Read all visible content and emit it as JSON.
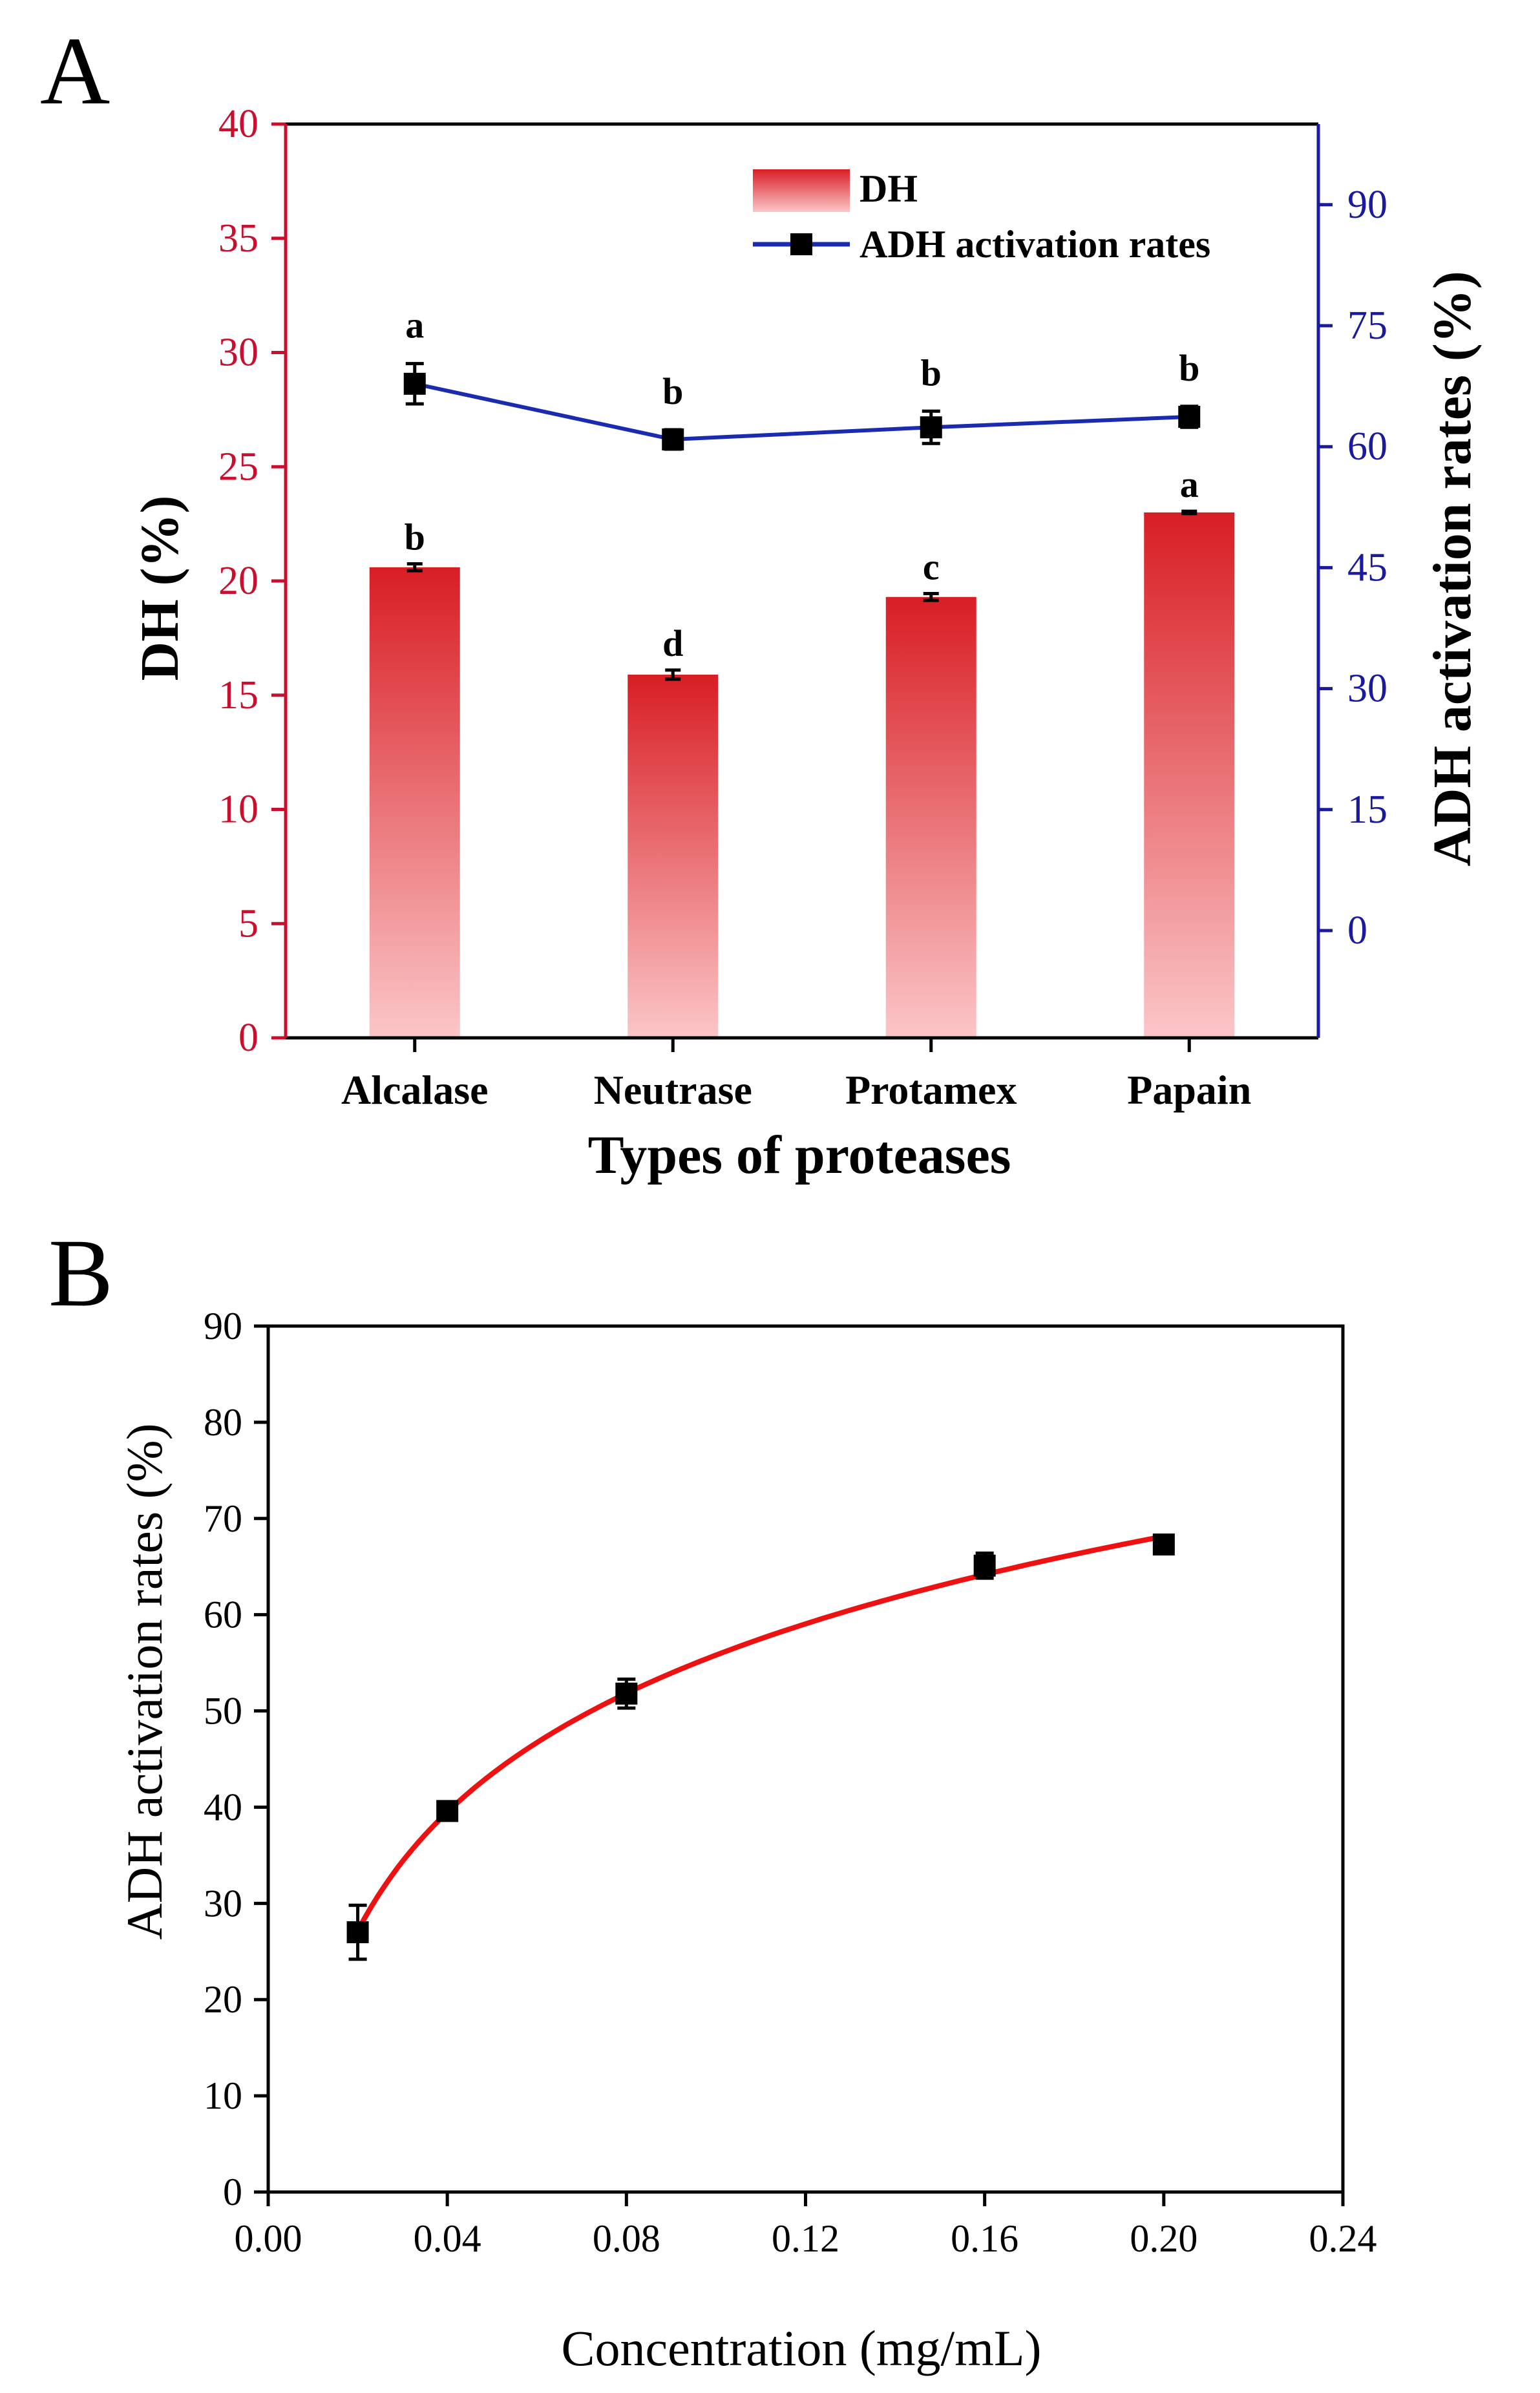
{
  "colors": {
    "dh_axis": "#c8102e",
    "adh_axis": "#1a1a9e",
    "adh_line": "#1a2bb0",
    "bar_top": "#d81e24",
    "bar_bottom": "#fbc6c8",
    "fit_curve": "#ee1111",
    "marker": "#000000",
    "text": "#000000"
  },
  "chart_data": [
    {
      "panel_label": "A",
      "type": "bar",
      "xlabel": "Types of proteases",
      "categories": [
        "Alcalase",
        "Neutrase",
        "Protamex",
        "Papain"
      ],
      "left_axis": {
        "label": "DH (%)",
        "ylim": [
          0,
          40
        ],
        "ticks": [
          0,
          5,
          10,
          15,
          20,
          25,
          30,
          35,
          40
        ],
        "tick_labels": [
          "0",
          "5",
          "10",
          "15",
          "20",
          "25",
          "30",
          "35",
          "40"
        ]
      },
      "right_axis": {
        "label": "ADH activation rates (%)",
        "ylim": [
          -13.3,
          100
        ],
        "ticks": [
          0,
          15,
          30,
          45,
          60,
          75,
          90
        ],
        "tick_labels": [
          "0",
          "15",
          "30",
          "45",
          "60",
          "75",
          "90"
        ]
      },
      "series": [
        {
          "name": "DH",
          "type": "bar",
          "axis": "left",
          "values": [
            20.6,
            15.9,
            19.3,
            23.0
          ],
          "errors": [
            0.15,
            0.2,
            0.15,
            0.05
          ],
          "letters": [
            "b",
            "d",
            "c",
            "a"
          ]
        },
        {
          "name": "ADH activation rates",
          "type": "line",
          "axis": "right",
          "values": [
            67.8,
            60.9,
            62.4,
            63.7
          ],
          "errors": [
            2.5,
            1.2,
            2.0,
            1.3
          ],
          "letters": [
            "a",
            "b",
            "b",
            "b"
          ]
        }
      ],
      "legend": {
        "position": "top-center",
        "entries": [
          "DH",
          "ADH activation rates"
        ]
      }
    },
    {
      "panel_label": "B",
      "type": "scatter",
      "xlabel": "Concentration (mg/mL)",
      "ylabel": "ADH activation rates (%)",
      "xlim": [
        0,
        0.24
      ],
      "ylim": [
        0,
        90
      ],
      "xticks": [
        0,
        0.04,
        0.08,
        0.12,
        0.16,
        0.2,
        0.24
      ],
      "xtick_labels": [
        "0.00",
        "0.04",
        "0.08",
        "0.12",
        "0.16",
        "0.20",
        "0.24"
      ],
      "yticks": [
        0,
        10,
        20,
        30,
        40,
        50,
        60,
        70,
        80,
        90
      ],
      "ytick_labels": [
        "0",
        "10",
        "20",
        "30",
        "40",
        "50",
        "60",
        "70",
        "80",
        "90"
      ],
      "points": [
        {
          "x": 0.02,
          "y": 27.0,
          "err": 2.8
        },
        {
          "x": 0.04,
          "y": 39.6,
          "err": 0.6
        },
        {
          "x": 0.08,
          "y": 51.8,
          "err": 1.5
        },
        {
          "x": 0.16,
          "y": 65.1,
          "err": 1.3
        },
        {
          "x": 0.2,
          "y": 67.3,
          "err": 0.7
        }
      ],
      "fit": {
        "type": "logarithmic",
        "x_range": [
          0.02,
          0.2
        ]
      }
    }
  ]
}
